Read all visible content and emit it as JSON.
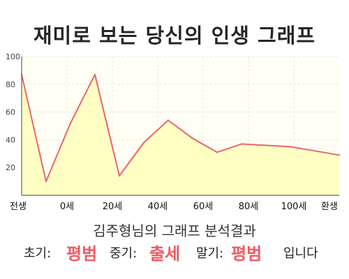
{
  "title": "재미로 보는 당신의 인생 그래프",
  "chart_data": {
    "type": "area",
    "title": "재미로 보는 당신의 인생 그래프",
    "xlabel": "",
    "ylabel": "",
    "ylim": [
      0,
      100
    ],
    "y_ticks": [
      20,
      40,
      60,
      80,
      100
    ],
    "x_ticks": [
      "전생",
      "0세",
      "20세",
      "40세",
      "60세",
      "80세",
      "100세",
      "환생"
    ],
    "series": [
      {
        "values": [
          87,
          10,
          52,
          87,
          14,
          38,
          54,
          41,
          31,
          37,
          36,
          35,
          32,
          29
        ]
      }
    ],
    "grid": true,
    "line_color": "#e8666d",
    "fill_color": "#ffffc4"
  },
  "subtitle": "김주형님의 그래프 분석결과",
  "summary": {
    "early_label": "초기:",
    "early_value": "평범",
    "middle_label": "중기:",
    "middle_value": "출세",
    "late_label": "말기:",
    "late_value": "평범",
    "ending": "입니다"
  },
  "colors": {
    "emphasis": "#f05a61",
    "grid": "#e6e6e6",
    "axis": "#444444"
  }
}
